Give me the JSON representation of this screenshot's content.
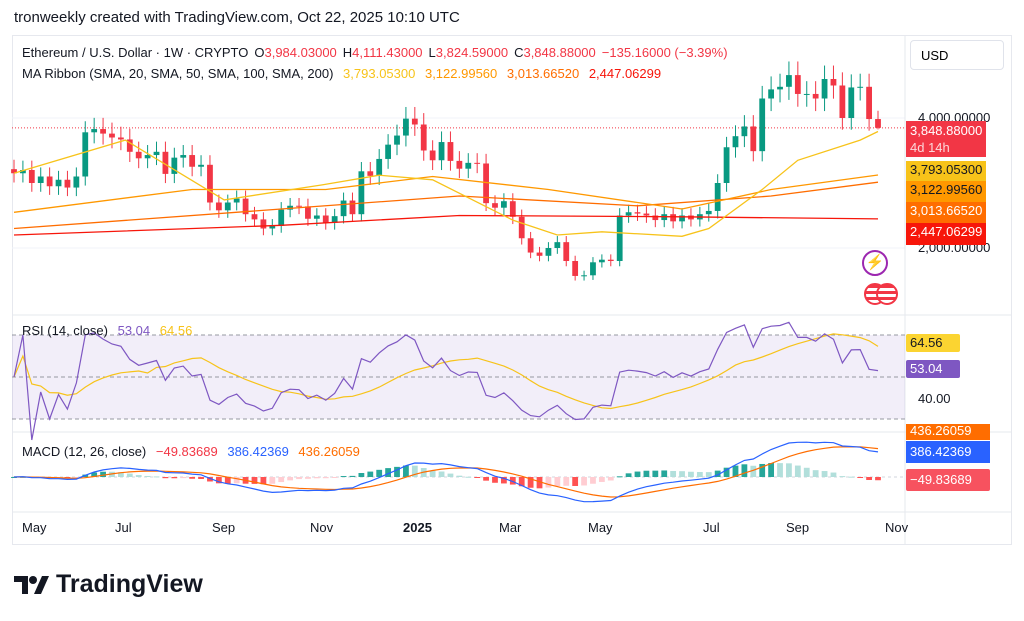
{
  "credit": "tronweekly created with TradingView.com, Oct 22, 2025 10:10 UTC",
  "legend": {
    "symbol": "Ethereum / U.S. Dollar · 1W · CRYPTO",
    "o_label": "O",
    "o": "3,984.03000",
    "h_label": "H",
    "h": "4,111.43000",
    "l_label": "L",
    "l": "3,824.59000",
    "c_label": "C",
    "c": "3,848.88000",
    "change": "−135.16000 (−3.39%)",
    "ma_title": "MA Ribbon (SMA, 20, SMA, 50, SMA, 100, SMA, 200)",
    "ma_values": [
      "3,793.05300",
      "3,122.99560",
      "3,013.66520",
      "2,447.06299"
    ],
    "rsi_title": "RSI (14, close)",
    "rsi_value": "53.04",
    "rsi_ma": "64.56",
    "macd_title": "MACD (12, 26, close)",
    "macd_hist": "−49.83689",
    "macd_line": "386.42369",
    "macd_signal": "436.26059"
  },
  "currency_button": "USD",
  "price_axis": {
    "labels": [
      "4,000.00000",
      "2,000.00000"
    ]
  },
  "price_tags": {
    "last": "3,848.88000",
    "countdown": "4d 14h",
    "ma20": "3,793.05300",
    "ma50": "3,122.99560",
    "ma100": "3,013.66520",
    "ma200": "2,447.06299"
  },
  "rsi_axis": {
    "tag_ma": "64.56",
    "tag_rsi": "53.04",
    "level": "40.00"
  },
  "macd_axis": {
    "tag_signal": "436.26059",
    "tag_macd": "386.42369",
    "tag_hist": "−49.83689"
  },
  "time_axis": [
    "May",
    "Jul",
    "Sep",
    "Nov",
    "2025",
    "Mar",
    "May",
    "Jul",
    "Sep",
    "Nov"
  ],
  "logo_text": "TradingView",
  "colors": {
    "up": "#089981",
    "down": "#f23645",
    "ma20": "#f7c31a",
    "ma50": "#ff9800",
    "ma100": "#ff6d00",
    "ma200": "#f7160a",
    "rsi": "#7e57c2",
    "macd": "#2962ff",
    "signal": "#ff6d00"
  },
  "chart_data": {
    "type": "candlestick",
    "title": "Ethereum / U.S. Dollar · 1W",
    "ylim": [
      1430,
      4860
    ],
    "closes": [
      3150,
      3200,
      3000,
      3100,
      2950,
      3050,
      2930,
      3100,
      3780,
      3830,
      3760,
      3700,
      3670,
      3480,
      3380,
      3430,
      3480,
      3140,
      3390,
      3430,
      3250,
      3280,
      2700,
      2580,
      2700,
      2760,
      2520,
      2440,
      2300,
      2340,
      2590,
      2650,
      2640,
      2450,
      2500,
      2390,
      2490,
      2730,
      2520,
      3180,
      3110,
      3370,
      3590,
      3730,
      3990,
      3900,
      3500,
      3350,
      3630,
      3340,
      3220,
      3310,
      3300,
      2690,
      2620,
      2720,
      2480,
      2150,
      1930,
      1880,
      2000,
      2090,
      1800,
      1570,
      1580,
      1780,
      1820,
      1800,
      2500,
      2550,
      2530,
      2500,
      2430,
      2520,
      2410,
      2500,
      2440,
      2520,
      2570,
      3000,
      3550,
      3720,
      3870,
      3490,
      4300,
      4440,
      4480,
      4660,
      4370,
      4370,
      4300,
      4600,
      4500,
      4000,
      4470,
      4480,
      3984.03,
      3848.88
    ],
    "ma20": [
      [
        0,
        3150
      ],
      [
        12.5,
        3660
      ],
      [
        23.6,
        2740
      ],
      [
        34.6,
        2970
      ],
      [
        41,
        3120
      ],
      [
        47,
        3050
      ],
      [
        56,
        2430
      ],
      [
        61,
        2200
      ],
      [
        66,
        2250
      ],
      [
        75,
        2180
      ],
      [
        78,
        2300
      ],
      [
        84,
        2900
      ],
      [
        88,
        3350
      ],
      [
        95,
        3660
      ],
      [
        97,
        3793
      ]
    ],
    "ma50": [
      [
        0,
        2550
      ],
      [
        20,
        2900
      ],
      [
        35,
        2900
      ],
      [
        47,
        3100
      ],
      [
        60,
        2900
      ],
      [
        75,
        2600
      ],
      [
        85,
        2900
      ],
      [
        97,
        3123
      ]
    ],
    "ma100": [
      [
        0,
        2300
      ],
      [
        30,
        2600
      ],
      [
        50,
        2800
      ],
      [
        70,
        2650
      ],
      [
        85,
        2800
      ],
      [
        97,
        3013
      ]
    ],
    "ma200": [
      [
        0,
        2200
      ],
      [
        30,
        2350
      ],
      [
        50,
        2500
      ],
      [
        75,
        2480
      ],
      [
        97,
        2447
      ]
    ],
    "rsi": {
      "period": 14,
      "levels": [
        70,
        30
      ],
      "last": 53.04,
      "ma_last": 64.56
    },
    "macd": {
      "fast": 12,
      "slow": 26,
      "last_macd": 386.42369,
      "last_signal": 436.26059,
      "last_hist": -49.83689
    }
  }
}
